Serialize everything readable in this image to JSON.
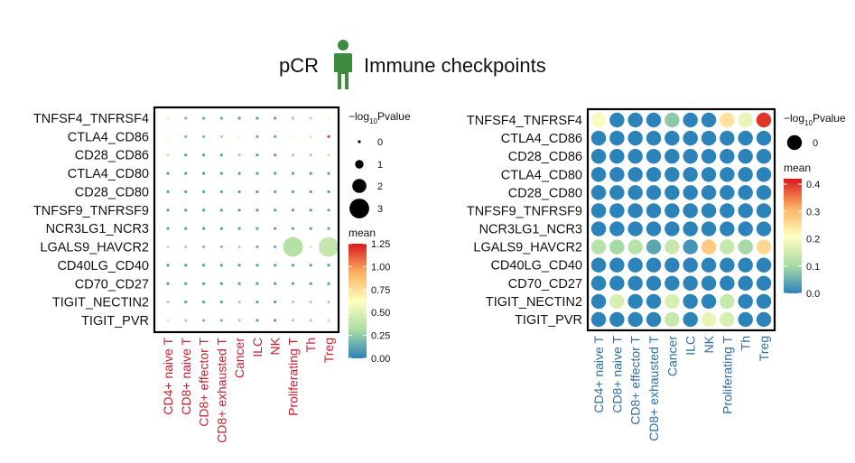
{
  "title": {
    "left": "pCR",
    "right": "Immune checkpoints"
  },
  "colors": {
    "person_icon": "#3d8b3d",
    "left_col_labels": "#cc1f2f",
    "right_col_labels": "#2e6fa6",
    "scale": [
      "#2b83ba",
      "#abdda4",
      "#ffffbf",
      "#fdae61",
      "#d7191c"
    ]
  },
  "icons": {
    "person": "person-icon"
  },
  "chart_data": [
    {
      "type": "dot-heatmap",
      "title": "",
      "rows": [
        "TNFSF4_TNFRSF4",
        "CTLA4_CD86",
        "CD28_CD86",
        "CTLA4_CD80",
        "CD28_CD80",
        "TNFSF9_TNFRSF9",
        "NCR3LG1_NCR3",
        "LGALS9_HAVCR2",
        "CD40LG_CD40",
        "CD70_CD27",
        "TIGIT_NECTIN2",
        "TIGIT_PVR"
      ],
      "columns": [
        "CD4+ naive T",
        "CD8+ naive T",
        "CD8+ effector T",
        "CD8+ exhausted T",
        "Cancer",
        "ILC",
        "NK",
        "Proliferating T",
        "Th",
        "Treg"
      ],
      "size_legend": {
        "title_prefix": "−log",
        "title_sub": "10",
        "title_suffix": "Pvalue",
        "levels": [
          0,
          1,
          2,
          3
        ]
      },
      "color_legend": {
        "title": "mean",
        "ticks": [
          "1.25",
          "1.00",
          "0.75",
          "0.50",
          "0.25",
          "0.00"
        ],
        "min": 0,
        "max": 1.25
      },
      "mean": [
        [
          0.55,
          0.2,
          0.15,
          0.15,
          0.1,
          0.1,
          0.1,
          0.3,
          0.4,
          0.6
        ],
        [
          0.65,
          0.2,
          0.2,
          0.3,
          0.6,
          0.15,
          0.15,
          0.6,
          0.75,
          1.15
        ],
        [
          0.45,
          0.1,
          0.1,
          0.1,
          0.3,
          0.1,
          0.1,
          0.3,
          0.3,
          0.4
        ],
        [
          0.1,
          0.1,
          0.1,
          0.1,
          0.1,
          0.1,
          0.1,
          0.1,
          0.1,
          0.1
        ],
        [
          0.1,
          0.1,
          0.1,
          0.1,
          0.1,
          0.1,
          0.1,
          0.1,
          0.1,
          0.1
        ],
        [
          0.1,
          0.1,
          0.1,
          0.1,
          0.1,
          0.1,
          0.1,
          0.1,
          0.1,
          0.1
        ],
        [
          0.1,
          0.1,
          0.1,
          0.1,
          0.1,
          0.1,
          0.1,
          0.1,
          0.1,
          0.1
        ],
        [
          0.4,
          0.3,
          0.2,
          0.2,
          0.3,
          0.15,
          0.15,
          0.35,
          0.5,
          0.4
        ],
        [
          0.1,
          0.1,
          0.1,
          0.1,
          0.1,
          0.1,
          0.1,
          0.1,
          0.1,
          0.1
        ],
        [
          0.1,
          0.1,
          0.1,
          0.1,
          0.1,
          0.1,
          0.1,
          0.1,
          0.1,
          0.1
        ],
        [
          0.3,
          0.1,
          0.1,
          0.1,
          0.3,
          0.1,
          0.1,
          0.3,
          0.3,
          0.3
        ],
        [
          0.5,
          0.3,
          0.2,
          0.2,
          0.3,
          0.1,
          0.1,
          0.3,
          0.3,
          0.4
        ]
      ],
      "neglog10p": [
        [
          0,
          0,
          0,
          0,
          0,
          0,
          0,
          0,
          0,
          0
        ],
        [
          0,
          0,
          0,
          0,
          0,
          0,
          0,
          0,
          0,
          0
        ],
        [
          0,
          0,
          0,
          0,
          0,
          0,
          0,
          0,
          0,
          0
        ],
        [
          0,
          0,
          0,
          0,
          0,
          0,
          0,
          0,
          0,
          0
        ],
        [
          0,
          0,
          0,
          0,
          0,
          0,
          0,
          0,
          0,
          0
        ],
        [
          0,
          0,
          0,
          0,
          0,
          0,
          0,
          0,
          0,
          0
        ],
        [
          0,
          0,
          0,
          0,
          0,
          0,
          0,
          0,
          0,
          0
        ],
        [
          0,
          0,
          0,
          0,
          0,
          0,
          0,
          3.0,
          0,
          3.0
        ],
        [
          0,
          0,
          0,
          0,
          0,
          0,
          0,
          0,
          0,
          0
        ],
        [
          0,
          0,
          0,
          0,
          0,
          0,
          0,
          0,
          0,
          0
        ],
        [
          0,
          0,
          0,
          0,
          0,
          0,
          0,
          0,
          0,
          0
        ],
        [
          0,
          0,
          0,
          0,
          0,
          0,
          0,
          0,
          0,
          0
        ]
      ]
    },
    {
      "type": "dot-heatmap",
      "title": "",
      "rows": [
        "TNFSF4_TNFRSF4",
        "CTLA4_CD86",
        "CD28_CD86",
        "CTLA4_CD80",
        "CD28_CD80",
        "TNFSF9_TNFRSF9",
        "NCR3LG1_NCR3",
        "LGALS9_HAVCR2",
        "CD40LG_CD40",
        "CD70_CD27",
        "TIGIT_NECTIN2",
        "TIGIT_PVR"
      ],
      "columns": [
        "CD4+ naive T",
        "CD8+ naive T",
        "CD8+ effector T",
        "CD8+ exhausted T",
        "Cancer",
        "ILC",
        "NK",
        "Proliferating T",
        "Th",
        "Treg"
      ],
      "size_legend": {
        "title_prefix": "−log",
        "title_sub": "10",
        "title_suffix": "Pvalue",
        "levels": [
          0
        ]
      },
      "color_legend": {
        "title": "mean",
        "ticks": [
          "0.4",
          "0.3",
          "0.2",
          "0.1",
          "0.0"
        ],
        "min": 0,
        "max": 0.42
      },
      "mean": [
        [
          0.2,
          0.0,
          0.0,
          0.0,
          0.08,
          0.0,
          0.0,
          0.25,
          0.18,
          0.4
        ],
        [
          0.0,
          0.0,
          0.0,
          0.0,
          0.0,
          0.0,
          0.0,
          0.0,
          0.0,
          0.0
        ],
        [
          0.0,
          0.0,
          0.0,
          0.0,
          0.0,
          0.0,
          0.0,
          0.0,
          0.0,
          0.0
        ],
        [
          0.0,
          0.0,
          0.0,
          0.0,
          0.0,
          0.0,
          0.0,
          0.0,
          0.0,
          0.0
        ],
        [
          0.0,
          0.0,
          0.0,
          0.0,
          0.0,
          0.0,
          0.0,
          0.0,
          0.0,
          0.0
        ],
        [
          0.0,
          0.0,
          0.0,
          0.0,
          0.0,
          0.0,
          0.0,
          0.0,
          0.0,
          0.0
        ],
        [
          0.0,
          0.0,
          0.0,
          0.0,
          0.0,
          0.0,
          0.0,
          0.0,
          0.0,
          0.0
        ],
        [
          0.12,
          0.1,
          0.12,
          0.04,
          0.14,
          0.02,
          0.28,
          0.14,
          0.1,
          0.26
        ],
        [
          0.0,
          0.0,
          0.0,
          0.0,
          0.0,
          0.0,
          0.0,
          0.0,
          0.0,
          0.0
        ],
        [
          0.0,
          0.0,
          0.0,
          0.0,
          0.0,
          0.0,
          0.0,
          0.0,
          0.0,
          0.0
        ],
        [
          0.0,
          0.16,
          0.0,
          0.0,
          0.16,
          0.0,
          0.0,
          0.14,
          0.0,
          0.0
        ],
        [
          0.0,
          0.0,
          0.0,
          0.0,
          0.14,
          0.0,
          0.18,
          0.16,
          0.0,
          0.0
        ]
      ],
      "neglog10p": [
        [
          0,
          0,
          0,
          0,
          0,
          0,
          0,
          0,
          0,
          0
        ],
        [
          0,
          0,
          0,
          0,
          0,
          0,
          0,
          0,
          0,
          0
        ],
        [
          0,
          0,
          0,
          0,
          0,
          0,
          0,
          0,
          0,
          0
        ],
        [
          0,
          0,
          0,
          0,
          0,
          0,
          0,
          0,
          0,
          0
        ],
        [
          0,
          0,
          0,
          0,
          0,
          0,
          0,
          0,
          0,
          0
        ],
        [
          0,
          0,
          0,
          0,
          0,
          0,
          0,
          0,
          0,
          0
        ],
        [
          0,
          0,
          0,
          0,
          0,
          0,
          0,
          0,
          0,
          0
        ],
        [
          0,
          0,
          0,
          0,
          0,
          0,
          0,
          0,
          0,
          0
        ],
        [
          0,
          0,
          0,
          0,
          0,
          0,
          0,
          0,
          0,
          0
        ],
        [
          0,
          0,
          0,
          0,
          0,
          0,
          0,
          0,
          0,
          0
        ],
        [
          0,
          0,
          0,
          0,
          0,
          0,
          0,
          0,
          0,
          0
        ],
        [
          0,
          0,
          0,
          0,
          0,
          0,
          0,
          0,
          0,
          0
        ]
      ]
    }
  ]
}
